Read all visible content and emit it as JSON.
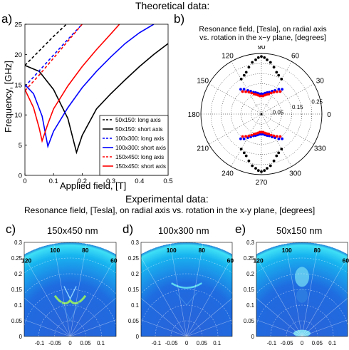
{
  "header": {
    "theoretical_title": "Theoretical data:"
  },
  "panel_a": {
    "label": "a)",
    "chart_data": {
      "type": "line",
      "xlabel": "Applied field, [T]",
      "ylabel": "Frequency, [GHz]",
      "xlim": [
        0,
        0.5
      ],
      "ylim": [
        0,
        25
      ],
      "xticks": [
        "0",
        "0.1",
        "0.2",
        "0.3",
        "0.4",
        "0.5"
      ],
      "yticks": [
        "0",
        "5",
        "10",
        "15",
        "20",
        "25"
      ],
      "series": [
        {
          "name": "50x150: long axis",
          "color": "#000000",
          "dash": true,
          "points": [
            [
              0,
              18.2
            ],
            [
              0.05,
              20.6
            ],
            [
              0.1,
              23.0
            ],
            [
              0.145,
              25.0
            ]
          ]
        },
        {
          "name": "50x150: short axis",
          "color": "#000000",
          "dash": false,
          "points": [
            [
              0,
              18.2
            ],
            [
              0.05,
              17.2
            ],
            [
              0.1,
              14.2
            ],
            [
              0.15,
              9.4
            ],
            [
              0.18,
              3.8
            ],
            [
              0.2,
              6.6
            ],
            [
              0.25,
              11.0
            ],
            [
              0.3,
              13.5
            ],
            [
              0.35,
              15.8
            ],
            [
              0.4,
              18.0
            ],
            [
              0.45,
              20.0
            ],
            [
              0.5,
              21.8
            ]
          ]
        },
        {
          "name": "100x300: long axis",
          "color": "#0000ff",
          "dash": true,
          "points": [
            [
              0,
              14.7
            ],
            [
              0.05,
              17.3
            ],
            [
              0.1,
              19.9
            ],
            [
              0.15,
              22.5
            ],
            [
              0.2,
              25.0
            ]
          ]
        },
        {
          "name": "100x300: short axis",
          "color": "#0000ff",
          "dash": false,
          "points": [
            [
              0,
              15.0
            ],
            [
              0.03,
              13.5
            ],
            [
              0.06,
              9.8
            ],
            [
              0.08,
              4.8
            ],
            [
              0.1,
              7.3
            ],
            [
              0.15,
              11.2
            ],
            [
              0.2,
              14.5
            ],
            [
              0.25,
              17.2
            ],
            [
              0.3,
              19.6
            ],
            [
              0.35,
              21.8
            ],
            [
              0.4,
              23.6
            ],
            [
              0.45,
              25.0
            ]
          ]
        },
        {
          "name": "150x450: long axis",
          "color": "#ff0000",
          "dash": true,
          "points": [
            [
              0,
              14.0
            ],
            [
              0.05,
              16.6
            ],
            [
              0.1,
              19.4
            ],
            [
              0.15,
              22.2
            ],
            [
              0.2,
              25.0
            ]
          ]
        },
        {
          "name": "150x450: short axis",
          "color": "#ff0000",
          "dash": false,
          "points": [
            [
              0,
              14.2
            ],
            [
              0.03,
              11.2
            ],
            [
              0.05,
              7.8
            ],
            [
              0.06,
              5.7
            ],
            [
              0.08,
              8.5
            ],
            [
              0.1,
              11.0
            ],
            [
              0.15,
              14.8
            ],
            [
              0.2,
              18.0
            ],
            [
              0.25,
              20.8
            ],
            [
              0.3,
              23.4
            ],
            [
              0.33,
              25.0
            ]
          ]
        }
      ],
      "legend_position": "bottom-right"
    }
  },
  "panel_b": {
    "label": "b)",
    "title_line1": "Resonance field, [Tesla], on radial axis",
    "title_line2": "vs. rotation in the x−y plane, [degrees]",
    "chart_data": {
      "type": "scatter",
      "projection": "polar",
      "angle_labels": [
        "90",
        "60",
        "30",
        "0",
        "330",
        "300",
        "270",
        "240",
        "210",
        "180",
        "150",
        "120"
      ],
      "radial_labels": [
        "0.05",
        "0.15",
        "0.25"
      ],
      "rlim": [
        0,
        0.3
      ],
      "series": [
        {
          "name": "50x150",
          "color": "#000000",
          "points": [
            [
              60,
              0.2
            ],
            [
              66,
              0.21
            ],
            [
              70,
              0.22
            ],
            [
              75,
              0.24
            ],
            [
              80,
              0.26
            ],
            [
              84,
              0.27
            ],
            [
              87,
              0.28
            ],
            [
              90,
              0.285
            ],
            [
              93,
              0.28
            ],
            [
              96,
              0.27
            ],
            [
              100,
              0.26
            ],
            [
              105,
              0.24
            ],
            [
              110,
              0.22
            ],
            [
              114,
              0.21
            ],
            [
              120,
              0.2
            ],
            [
              240,
              0.2
            ],
            [
              246,
              0.21
            ],
            [
              250,
              0.22
            ],
            [
              255,
              0.24
            ],
            [
              260,
              0.26
            ],
            [
              264,
              0.27
            ],
            [
              267,
              0.28
            ],
            [
              270,
              0.285
            ],
            [
              273,
              0.28
            ],
            [
              276,
              0.27
            ],
            [
              280,
              0.26
            ],
            [
              285,
              0.24
            ],
            [
              290,
              0.22
            ],
            [
              294,
              0.21
            ],
            [
              300,
              0.2
            ]
          ]
        },
        {
          "name": "100x300",
          "color": "#0000ff",
          "points": [
            [
              50,
              0.16
            ],
            [
              55,
              0.15
            ],
            [
              60,
              0.135
            ],
            [
              65,
              0.125
            ],
            [
              70,
              0.115
            ],
            [
              75,
              0.11
            ],
            [
              80,
              0.105
            ],
            [
              85,
              0.1
            ],
            [
              90,
              0.1
            ],
            [
              95,
              0.1
            ],
            [
              100,
              0.105
            ],
            [
              105,
              0.11
            ],
            [
              110,
              0.115
            ],
            [
              115,
              0.125
            ],
            [
              120,
              0.135
            ],
            [
              125,
              0.15
            ],
            [
              130,
              0.16
            ],
            [
              230,
              0.16
            ],
            [
              235,
              0.15
            ],
            [
              240,
              0.135
            ],
            [
              245,
              0.125
            ],
            [
              250,
              0.115
            ],
            [
              255,
              0.11
            ],
            [
              260,
              0.105
            ],
            [
              265,
              0.1
            ],
            [
              270,
              0.1
            ],
            [
              275,
              0.1
            ],
            [
              280,
              0.105
            ],
            [
              285,
              0.11
            ],
            [
              290,
              0.115
            ],
            [
              295,
              0.125
            ],
            [
              300,
              0.135
            ],
            [
              305,
              0.15
            ],
            [
              310,
              0.16
            ]
          ]
        },
        {
          "name": "150x450",
          "color": "#ff0000",
          "points": [
            [
              50,
              0.145
            ],
            [
              55,
              0.135
            ],
            [
              60,
              0.125
            ],
            [
              65,
              0.115
            ],
            [
              70,
              0.105
            ],
            [
              75,
              0.1
            ],
            [
              80,
              0.095
            ],
            [
              85,
              0.09
            ],
            [
              90,
              0.09
            ],
            [
              95,
              0.09
            ],
            [
              100,
              0.095
            ],
            [
              105,
              0.1
            ],
            [
              110,
              0.105
            ],
            [
              115,
              0.115
            ],
            [
              120,
              0.125
            ],
            [
              125,
              0.135
            ],
            [
              130,
              0.145
            ],
            [
              230,
              0.145
            ],
            [
              235,
              0.135
            ],
            [
              240,
              0.125
            ],
            [
              245,
              0.115
            ],
            [
              250,
              0.105
            ],
            [
              255,
              0.1
            ],
            [
              260,
              0.095
            ],
            [
              265,
              0.09
            ],
            [
              270,
              0.09
            ],
            [
              275,
              0.09
            ],
            [
              280,
              0.095
            ],
            [
              285,
              0.1
            ],
            [
              290,
              0.105
            ],
            [
              295,
              0.115
            ],
            [
              300,
              0.125
            ],
            [
              305,
              0.135
            ],
            [
              310,
              0.145
            ]
          ]
        }
      ]
    }
  },
  "experimental": {
    "title": "Experimental data:",
    "subtitle": "Resonance field, [Tesla], on radial axis vs. rotation in the x-y plane, [degrees]",
    "yticks": [
      "0",
      "0.05",
      "0.1",
      "0.15",
      "0.2",
      "0.25",
      "0.3"
    ],
    "panels": [
      {
        "label": "c)",
        "heading": "150x450 nm",
        "angle_labels": [
          "120",
          "100",
          "80",
          "60"
        ],
        "xticks": [
          "-0.1",
          "-0.05",
          "0",
          "0.05",
          "0.1"
        ]
      },
      {
        "label": "d)",
        "heading": "100x300 nm",
        "angle_labels": [
          "100",
          "80",
          "60"
        ],
        "xticks": [
          "-0.1",
          "-0.05",
          "0",
          "0.05",
          "0.1"
        ]
      },
      {
        "label": "e)",
        "heading": "50x150 nm",
        "angle_labels": [
          "120",
          "100",
          "80",
          "60"
        ],
        "xticks": [
          "-0.1",
          "-0.05",
          "0",
          "0.05",
          "0.1"
        ]
      }
    ]
  }
}
